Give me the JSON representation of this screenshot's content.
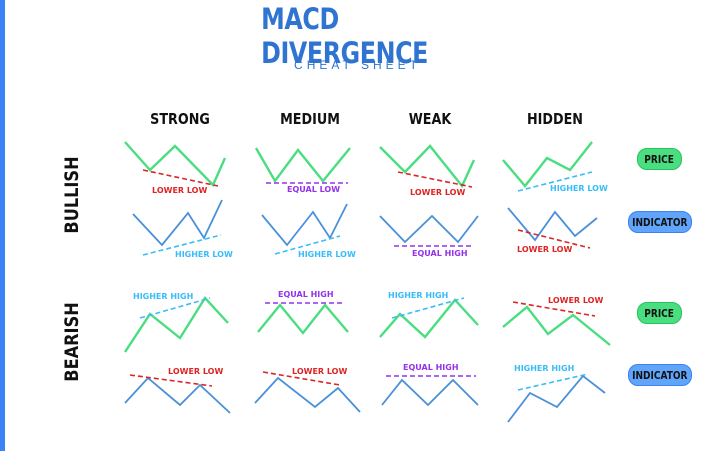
{
  "header": {
    "title": "MACD DIVERGENCE",
    "subtitle": "CHEAT SHEET"
  },
  "columns": [
    "STRONG",
    "MEDIUM",
    "WEAK",
    "HIDDEN"
  ],
  "rows": [
    "BULLISH",
    "BEARISH"
  ],
  "legend": {
    "price_label": "PRICE",
    "indicator_label": "INDICATOR"
  },
  "colors": {
    "accent": "#2f74d0",
    "price_line": "#4ade80",
    "indicator_line": "#4a90d9",
    "red": "#dc2626",
    "purple": "#9333ea",
    "teal": "#38bdf8",
    "pill_green": "#4ade80",
    "pill_blue": "#60a5fa"
  },
  "patterns": {
    "bullish": {
      "price": {
        "strong": "LOWER LOW",
        "medium": "EQUAL LOW",
        "weak": "LOWER LOW",
        "hidden": "HIGHER LOW"
      },
      "indicator": {
        "strong": "HIGHER LOW",
        "medium": "HIGHER LOW",
        "weak": "EQUAL HIGH",
        "hidden": "LOWER LOW"
      }
    },
    "bearish": {
      "price": {
        "strong": "HIGHER HIGH",
        "medium": "EQUAL HIGH",
        "weak": "HIGHER HIGH",
        "hidden": "LOWER LOW"
      },
      "indicator": {
        "strong": "LOWER LOW",
        "medium": "LOWER LOW",
        "weak": "EQUAL HIGH",
        "hidden": "HIGHER HIGH"
      }
    }
  }
}
